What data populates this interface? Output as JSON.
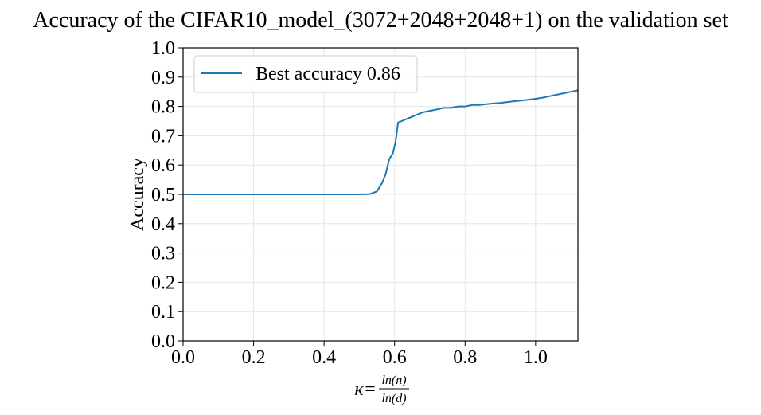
{
  "chart_data": {
    "type": "line",
    "title": "Accuracy of the CIFAR10_model_(3072+2048+2048+1) on the validation set",
    "xlabel": {
      "prefix": "κ=",
      "numerator": "ln(n)",
      "denominator": "ln(d)"
    },
    "ylabel": "Accuracy",
    "xlim": [
      0.0,
      1.12
    ],
    "ylim": [
      0.0,
      1.0
    ],
    "xticks": [
      {
        "value": 0.0,
        "label": "0.0"
      },
      {
        "value": 0.2,
        "label": "0.2"
      },
      {
        "value": 0.4,
        "label": "0.4"
      },
      {
        "value": 0.6,
        "label": "0.6"
      },
      {
        "value": 0.8,
        "label": "0.8"
      },
      {
        "value": 1.0,
        "label": "1.0"
      }
    ],
    "yticks": [
      {
        "value": 0.0,
        "label": "0.0"
      },
      {
        "value": 0.1,
        "label": "0.1"
      },
      {
        "value": 0.2,
        "label": "0.2"
      },
      {
        "value": 0.3,
        "label": "0.3"
      },
      {
        "value": 0.4,
        "label": "0.4"
      },
      {
        "value": 0.5,
        "label": "0.5"
      },
      {
        "value": 0.6,
        "label": "0.6"
      },
      {
        "value": 0.7,
        "label": "0.7"
      },
      {
        "value": 0.8,
        "label": "0.8"
      },
      {
        "value": 0.9,
        "label": "0.9"
      },
      {
        "value": 1.0,
        "label": "1.0"
      }
    ],
    "grid": true,
    "legend": {
      "placement": "top-left"
    },
    "series": [
      {
        "name": "Best accuracy 0.86",
        "color": "#1f77b4",
        "x": [
          0.0,
          0.5,
          0.53,
          0.55,
          0.565,
          0.575,
          0.585,
          0.595,
          0.603,
          0.61,
          0.62,
          0.64,
          0.66,
          0.68,
          0.7,
          0.72,
          0.74,
          0.76,
          0.78,
          0.8,
          0.82,
          0.84,
          0.86,
          0.88,
          0.9,
          0.92,
          0.94,
          0.96,
          0.98,
          1.0,
          1.02,
          1.04,
          1.06,
          1.08,
          1.1,
          1.12
        ],
        "y": [
          0.5,
          0.5,
          0.501,
          0.51,
          0.54,
          0.57,
          0.62,
          0.64,
          0.68,
          0.745,
          0.75,
          0.76,
          0.77,
          0.78,
          0.785,
          0.79,
          0.795,
          0.795,
          0.8,
          0.8,
          0.805,
          0.805,
          0.808,
          0.81,
          0.812,
          0.815,
          0.818,
          0.82,
          0.823,
          0.826,
          0.83,
          0.835,
          0.84,
          0.845,
          0.85,
          0.855
        ]
      }
    ]
  }
}
